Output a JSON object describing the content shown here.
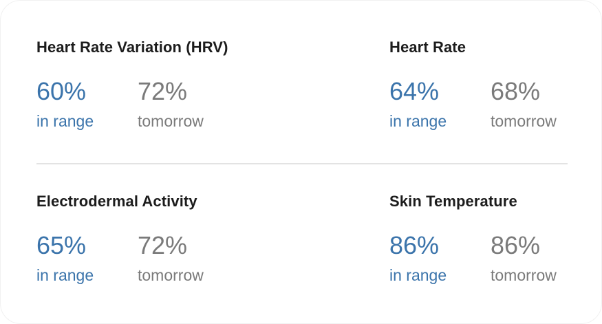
{
  "colors": {
    "in_range": "#3b74ab",
    "tomorrow": "#7a7a7a",
    "title": "#1c1c1c",
    "divider": "#e3e3e3"
  },
  "metrics": [
    {
      "title": "Heart Rate Variation (HRV)",
      "value": "60%",
      "value_label": "in range",
      "forecast": "72%",
      "forecast_label": "tomorrow"
    },
    {
      "title": "Heart Rate",
      "value": "64%",
      "value_label": "in range",
      "forecast": "68%",
      "forecast_label": "tomorrow"
    },
    {
      "title": "Electrodermal Activity",
      "value": "65%",
      "value_label": "in range",
      "forecast": "72%",
      "forecast_label": "tomorrow"
    },
    {
      "title": "Skin Temperature",
      "value": "86%",
      "value_label": "in range",
      "forecast": "86%",
      "forecast_label": "tomorrow"
    }
  ]
}
